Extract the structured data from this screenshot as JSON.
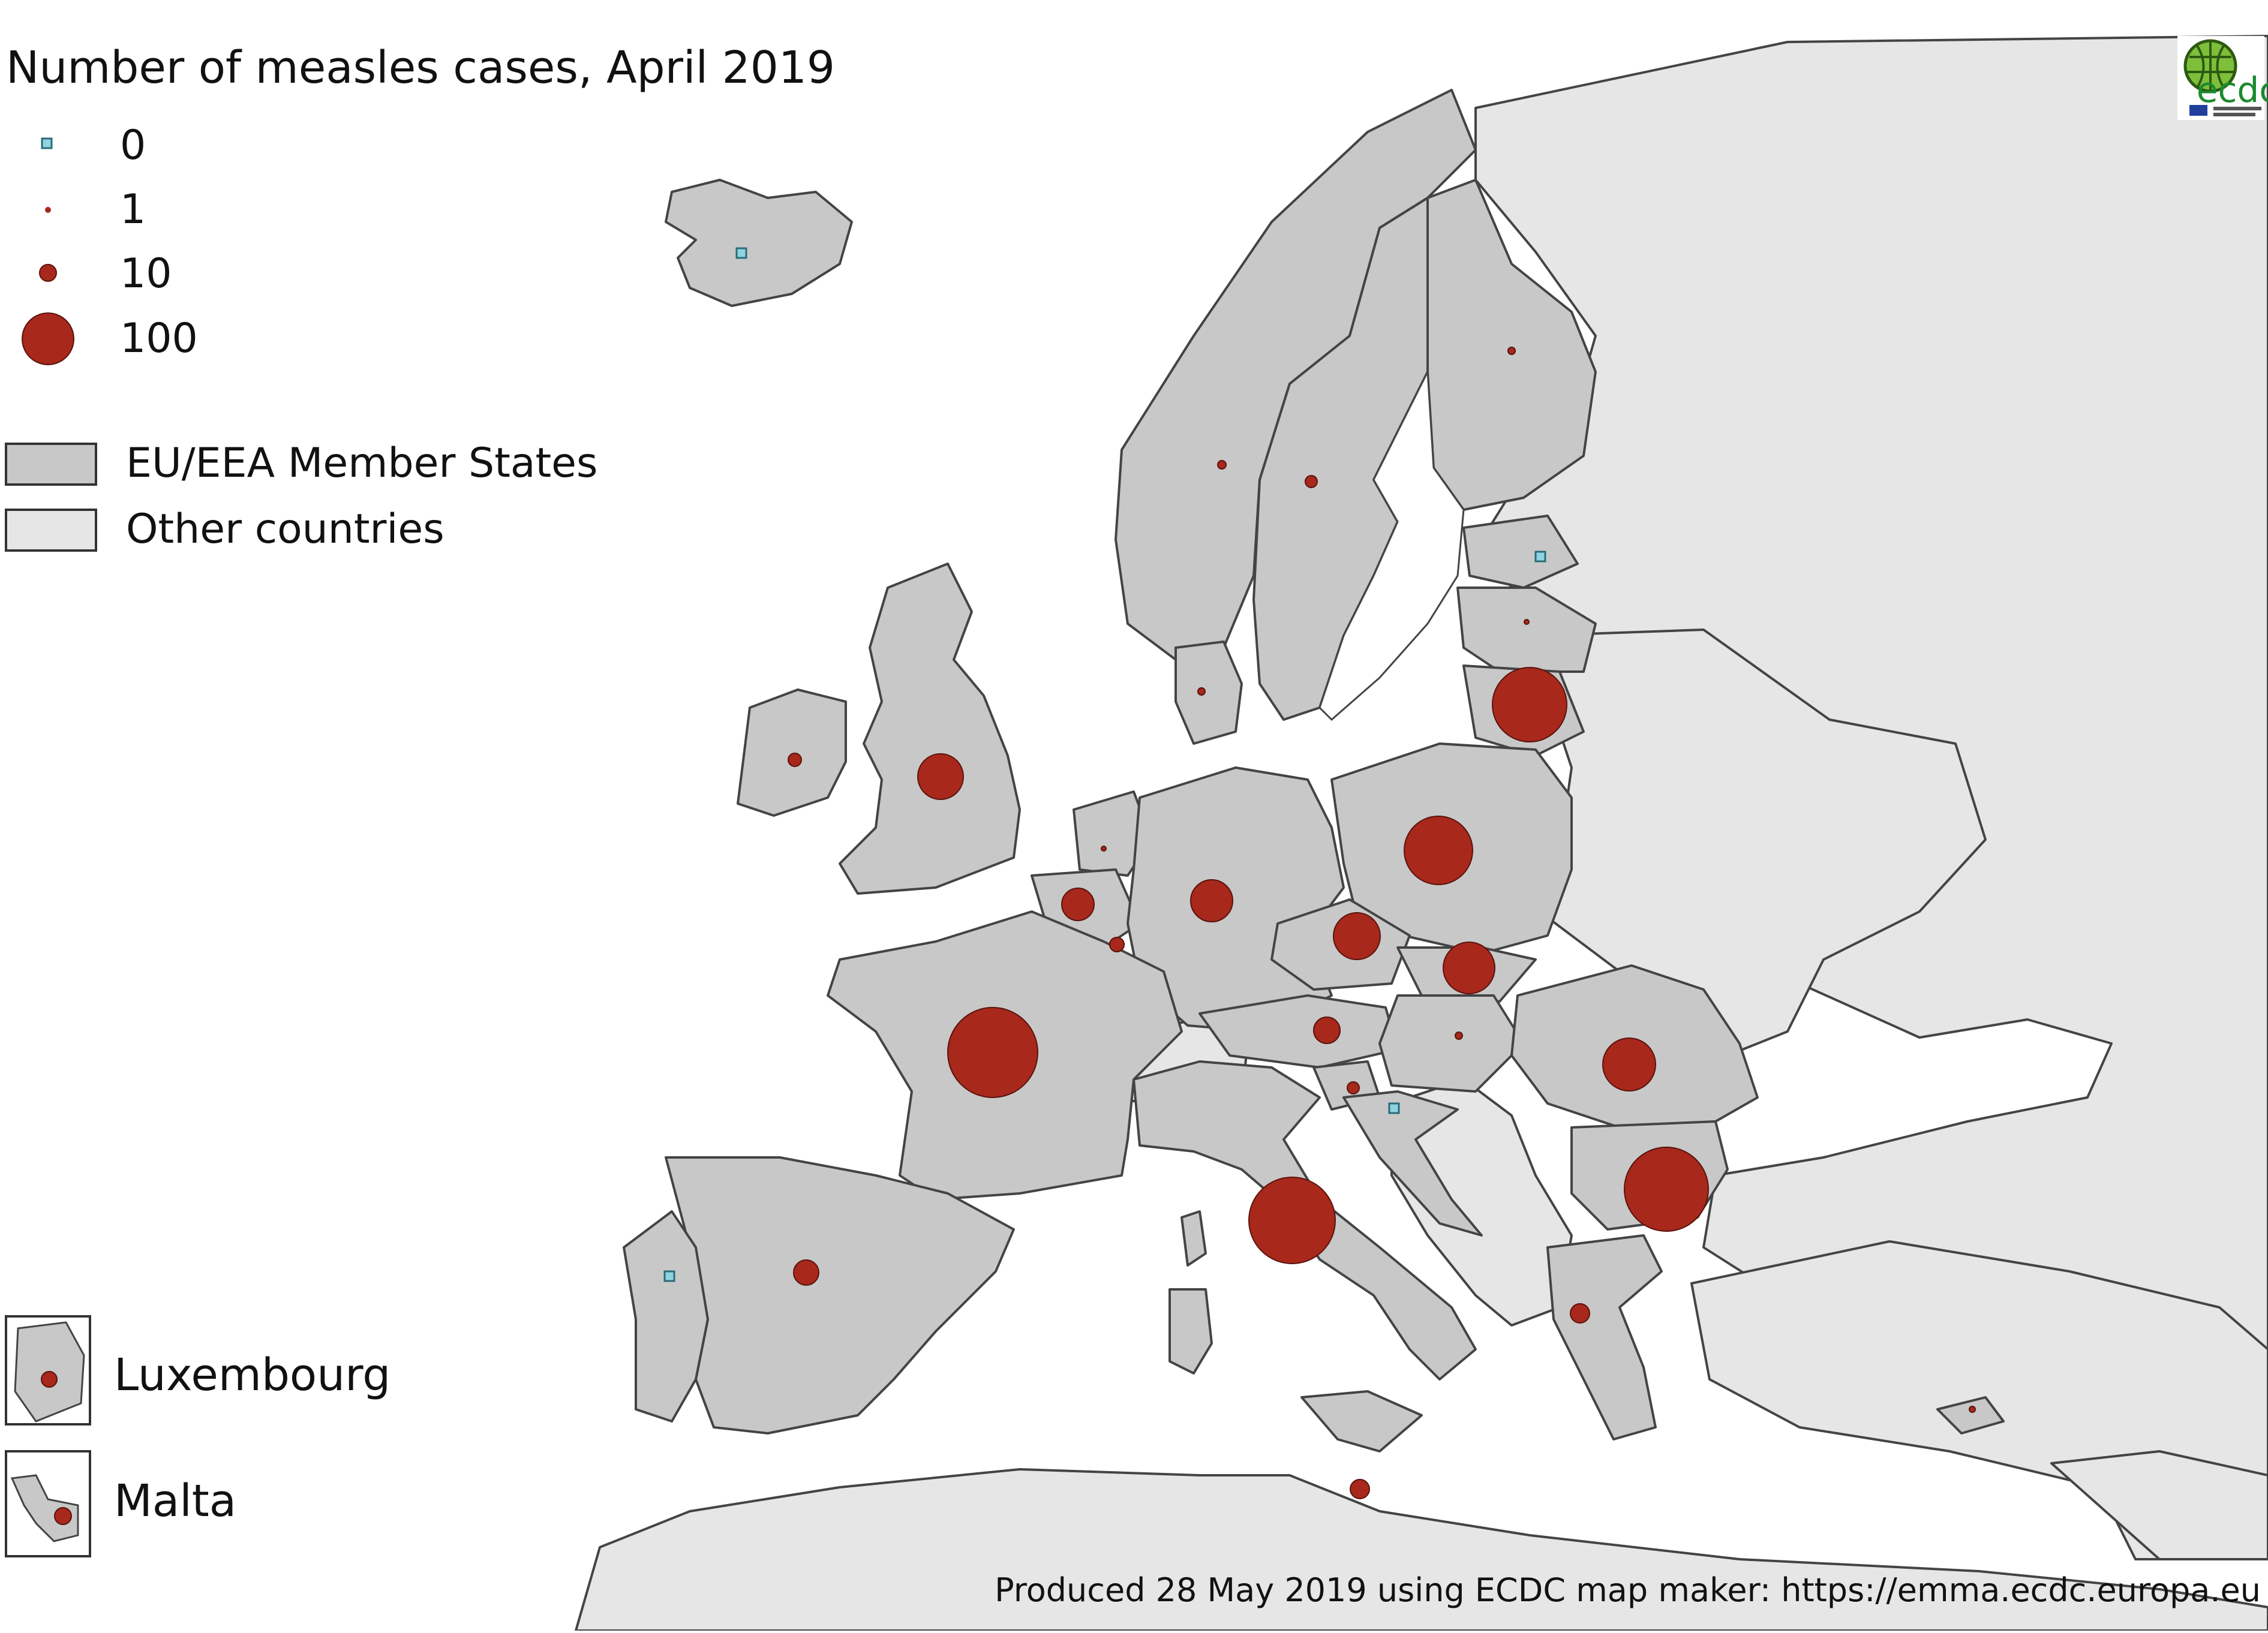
{
  "title": "Number of measles cases, April 2019",
  "legend": {
    "size_items": [
      {
        "label": "0",
        "value": 0
      },
      {
        "label": "1",
        "value": 1
      },
      {
        "label": "10",
        "value": 10
      },
      {
        "label": "100",
        "value": 100
      }
    ],
    "area_items": [
      {
        "label": "EU/EEA Member States",
        "color": "#c8c8c8"
      },
      {
        "label": "Other countries",
        "color": "#e6e6e6"
      }
    ]
  },
  "insets": [
    {
      "label": "Luxembourg"
    },
    {
      "label": "Malta"
    }
  ],
  "credit": "Produced 28 May 2019 using ECDC map maker: https://emma.ecdc.europa.eu",
  "logo": {
    "text": "ecdc",
    "icon": "ecdc-globe-logo"
  },
  "colors": {
    "case_marker": "#a8281c",
    "zero_marker": "#8fd3e0",
    "eu_eea": "#c8c8c8",
    "other": "#e6e6e6",
    "sea": "#ffffff",
    "border": "#444444"
  }
}
